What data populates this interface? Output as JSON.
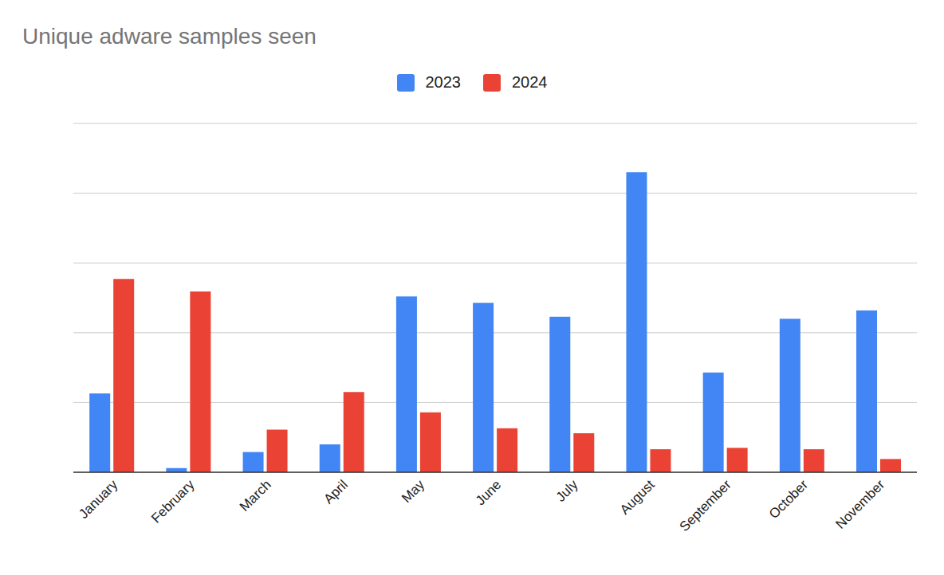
{
  "chart_data": {
    "type": "bar",
    "title": "Unique adware samples seen",
    "categories": [
      "January",
      "February",
      "March",
      "April",
      "May",
      "June",
      "July",
      "August",
      "September",
      "October",
      "November"
    ],
    "series": [
      {
        "name": "2023",
        "color": "#4285f4",
        "values": [
          1.13,
          0.06,
          0.29,
          0.4,
          2.52,
          2.43,
          2.23,
          4.3,
          1.43,
          2.2,
          2.32
        ]
      },
      {
        "name": "2024",
        "color": "#ea4335",
        "values": [
          2.77,
          2.59,
          0.61,
          1.15,
          0.86,
          0.63,
          0.56,
          0.33,
          0.35,
          0.33,
          0.19
        ]
      }
    ],
    "ylim": [
      0,
      5
    ],
    "yticks": [
      0,
      1,
      2,
      3,
      4,
      5
    ],
    "grid": true,
    "legend": "top",
    "tick_labels": "x"
  }
}
